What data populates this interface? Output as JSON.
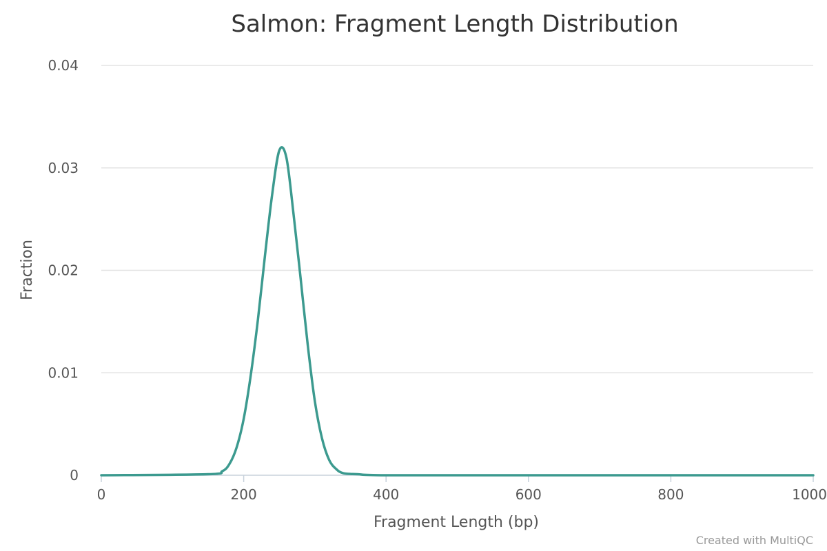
{
  "chart_data": {
    "type": "line",
    "title": "Salmon: Fragment Length Distribution",
    "xlabel": "Fragment Length (bp)",
    "ylabel": "Fraction",
    "xlim": [
      0,
      1000
    ],
    "ylim": [
      0,
      0.04
    ],
    "x_ticks": [
      0,
      200,
      400,
      600,
      800,
      1000
    ],
    "y_ticks": [
      0,
      0.01,
      0.02,
      0.03,
      0.04
    ],
    "x_tick_labels": [
      "0",
      "200",
      "400",
      "600",
      "800",
      "1000"
    ],
    "y_tick_labels": [
      "0",
      "0.01",
      "0.02",
      "0.03",
      "0.04"
    ],
    "grid": true,
    "series": [
      {
        "color": "#3c9a8f",
        "x": [
          0,
          150,
          170,
          180,
          190,
          200,
          210,
          220,
          230,
          240,
          250,
          260,
          270,
          280,
          290,
          300,
          310,
          320,
          330,
          340,
          360,
          400,
          600,
          800,
          1000
        ],
        "y": [
          0,
          0.0001,
          0.0004,
          0.0011,
          0.0027,
          0.0055,
          0.0098,
          0.0152,
          0.0215,
          0.0274,
          0.0317,
          0.031,
          0.0255,
          0.0192,
          0.0127,
          0.0072,
          0.0036,
          0.0015,
          0.0006,
          0.0002,
          0.0001,
          0,
          0,
          0,
          0
        ]
      }
    ]
  },
  "credit": "Created with MultiQC"
}
